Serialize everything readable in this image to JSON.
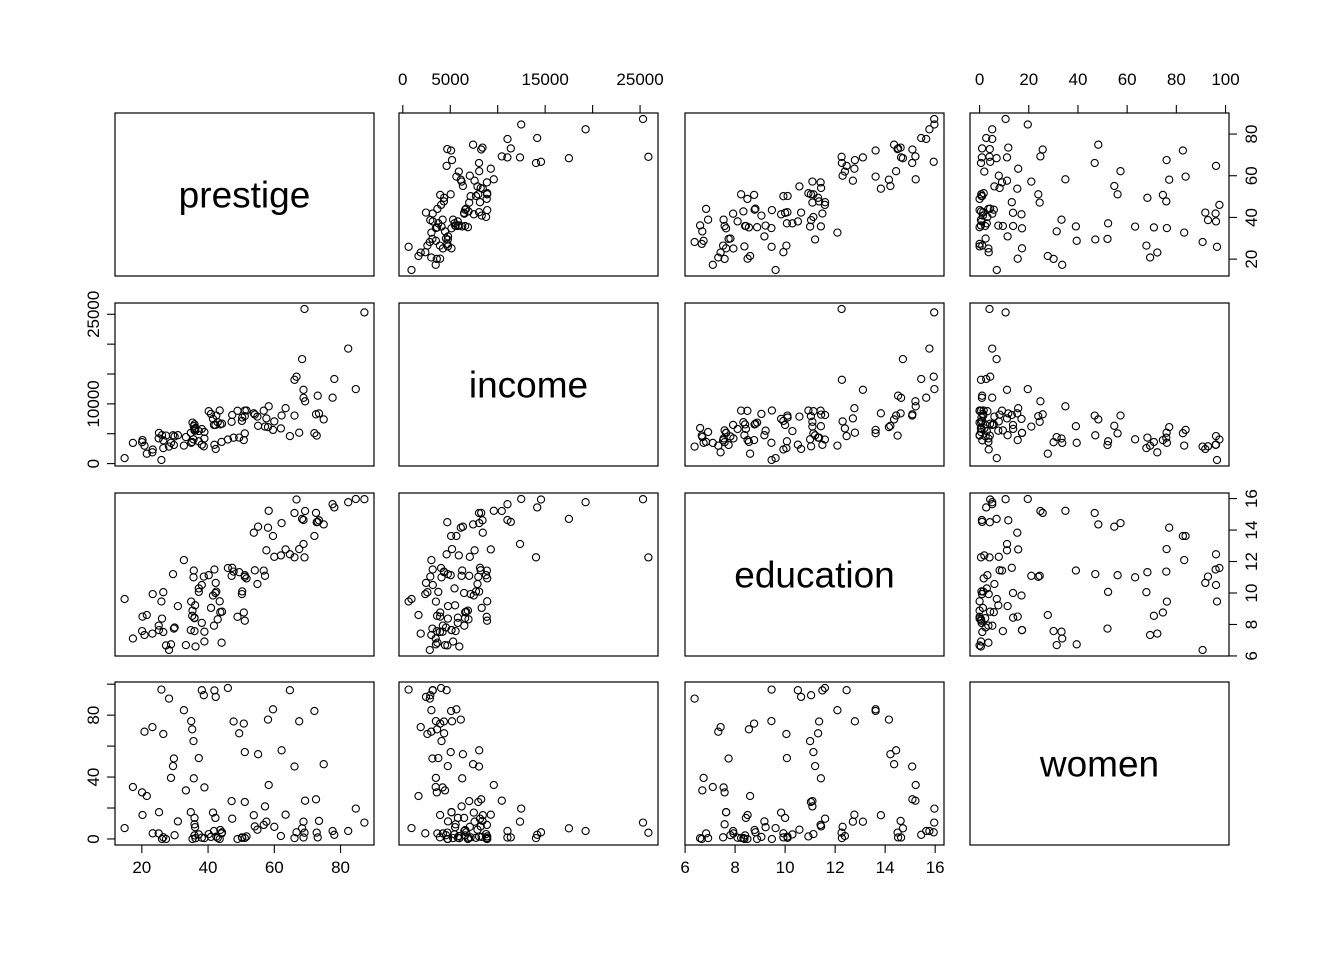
{
  "chart_data": {
    "type": "scatter",
    "subtype": "scatterplot-matrix",
    "title": "",
    "variables": [
      "prestige",
      "income",
      "education",
      "women"
    ],
    "axes": {
      "prestige": {
        "ticks": [
          20,
          40,
          60,
          80
        ],
        "labels": [
          "20",
          "40",
          "60",
          "80"
        ]
      },
      "income": {
        "ticks": [
          0,
          5000,
          10000,
          15000,
          20000,
          25000
        ],
        "labels_top": [
          "0",
          "5000",
          "",
          "15000",
          "",
          "25000"
        ],
        "labels_side": [
          "0",
          "",
          "10000",
          "",
          "",
          "25000"
        ]
      },
      "education": {
        "ticks": [
          6,
          8,
          10,
          12,
          14,
          16
        ],
        "labels": [
          "6",
          "8",
          "10",
          "12",
          "14",
          "16"
        ]
      },
      "women": {
        "ticks": [
          0,
          20,
          40,
          60,
          80,
          100
        ],
        "labels_top": [
          "0",
          "20",
          "40",
          "60",
          "80",
          "100"
        ],
        "labels_side": [
          "0",
          "",
          "40",
          "",
          "80",
          ""
        ]
      }
    },
    "data": {
      "education": [
        13.11,
        12.26,
        12.77,
        11.42,
        14.62,
        15.64,
        15.09,
        15.44,
        14.52,
        14.64,
        12.39,
        12.3,
        13.83,
        14.44,
        14.36,
        14.21,
        15.77,
        14.15,
        15.22,
        14.5,
        15.97,
        13.62,
        15.08,
        15.96,
        15.94,
        14.71,
        12.46,
        9.45,
        13.62,
        15.21,
        12.79,
        11.09,
        12.71,
        11.44,
        11.59,
        11.49,
        11.32,
        10.64,
        11.36,
        9.17,
        12.09,
        11.04,
        9.22,
        10.07,
        10.51,
        11.2,
        11.13,
        11.43,
        11.0,
        9.84,
        11.13,
        10.05,
        9.62,
        9.93,
        11.6,
        11.09,
        11.03,
        9.47,
        10.93,
        7.74,
        8.5,
        10.57,
        9.46,
        7.33,
        7.11,
        7.58,
        6.84,
        8.6,
        8.88,
        7.54,
        7.64,
        7.64,
        7.42,
        6.69,
        6.74,
        10.09,
        8.81,
        8.4,
        7.92,
        8.43,
        8.78,
        8.76,
        10.29,
        6.38,
        8.1,
        10.1,
        6.67,
        9.05,
        9.93,
        8.24,
        6.92,
        6.6,
        7.81,
        8.33,
        7.52,
        12.27,
        8.49,
        7.58,
        7.93,
        8.37,
        10.0,
        8.55
      ],
      "income": [
        12351,
        25879,
        9271,
        8865,
        8403,
        11030,
        8258,
        14163,
        11377,
        11023,
        5902,
        7059,
        8425,
        8049,
        7405,
        6336,
        19263,
        6112,
        9593,
        4686,
        12480,
        5648,
        8034,
        25308,
        14558,
        17498,
        4614,
        3485,
        5092,
        10432,
        5180,
        6197,
        7562,
        8206,
        4036,
        3148,
        4348,
        2448,
        4330,
        4761,
        3016,
        2901,
        5511,
        3739,
        3161,
        4741,
        5052,
        6259,
        4075,
        7482,
        8780,
        2594,
        918,
        2370,
        8131,
        6992,
        7956,
        8895,
        8891,
        3116,
        3930,
        7869,
        611,
        3000,
        3472,
        3582,
        3643,
        1656,
        6860,
        4199,
        5134,
        5134,
        1890,
        4443,
        3485,
        8043,
        6686,
        6565,
        6477,
        5811,
        6573,
        3942,
        5449,
        2847,
        5795,
        7716,
        4696,
        8316,
        7147,
        8880,
        5299,
        5959,
        4549,
        6928,
        3910,
        14032,
        8845,
        5562,
        4224,
        4753,
        6462,
        3617
      ],
      "women": [
        11.16,
        4.02,
        15.7,
        9.11,
        11.68,
        5.13,
        25.65,
        2.69,
        1.03,
        0.94,
        1.91,
        7.83,
        15.33,
        57.31,
        48.28,
        54.77,
        5.13,
        77.1,
        34.89,
        4.14,
        19.59,
        83.78,
        46.8,
        10.56,
        4.32,
        6.91,
        96.12,
        76.14,
        82.66,
        24.71,
        76.04,
        21.03,
        11.15,
        8.13,
        97.51,
        95.97,
        68.24,
        91.76,
        75.92,
        11.37,
        83.19,
        92.86,
        7.62,
        52.27,
        96.14,
        47.06,
        56.1,
        39.17,
        63.23,
        17.04,
        3.16,
        67.82,
        7.0,
        3.69,
        13.09,
        24.44,
        23.88,
        0.0,
        1.65,
        52.0,
        15.51,
        6.01,
        96.53,
        69.31,
        33.57,
        30.08,
        3.6,
        27.75,
        0.0,
        33.3,
        17.26,
        17.26,
        72.24,
        31.36,
        39.48,
        1.5,
        4.28,
        2.3,
        5.17,
        13.62,
        5.78,
        74.54,
        2.92,
        90.67,
        0.81,
        0.78,
        0.0,
        1.34,
        0.99,
        0.65,
        0.56,
        0.52,
        2.46,
        0.61,
        1.09,
        0.58,
        0.0,
        9.47,
        3.59,
        0.0,
        13.58,
        70.87
      ],
      "prestige": [
        68.8,
        69.1,
        63.4,
        56.8,
        73.5,
        77.6,
        72.6,
        78.1,
        73.1,
        68.8,
        62.0,
        60.0,
        53.8,
        62.2,
        74.9,
        55.1,
        82.3,
        58.1,
        58.3,
        72.8,
        84.6,
        59.6,
        66.1,
        87.2,
        66.7,
        68.4,
        64.7,
        34.9,
        72.1,
        69.3,
        67.5,
        57.2,
        57.6,
        54.1,
        46.0,
        41.9,
        49.4,
        42.3,
        47.7,
        30.9,
        32.7,
        38.7,
        36.1,
        37.2,
        38.1,
        29.4,
        51.1,
        35.7,
        35.6,
        41.5,
        40.2,
        26.5,
        14.8,
        23.3,
        47.3,
        47.1,
        51.1,
        43.5,
        51.6,
        29.7,
        20.2,
        54.9,
        25.9,
        20.8,
        17.3,
        20.1,
        44.1,
        21.5,
        35.3,
        38.9,
        25.2,
        34.8,
        23.2,
        33.3,
        28.8,
        42.5,
        44.2,
        35.9,
        41.8,
        35.9,
        43.7,
        50.8,
        37.2,
        28.2,
        38.1,
        50.3,
        27.3,
        40.9,
        50.2,
        51.1,
        38.9,
        36.2,
        29.9,
        42.9,
        26.5,
        66.1,
        48.9,
        35.9,
        25.1,
        26.1,
        42.2,
        35.2
      ]
    }
  }
}
